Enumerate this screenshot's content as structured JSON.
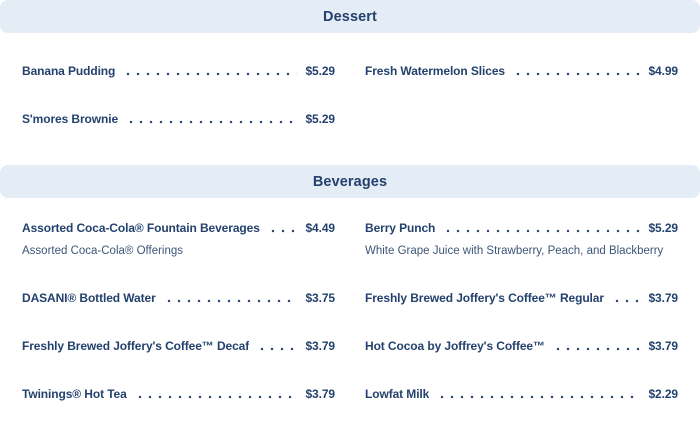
{
  "page": {
    "background_color": "#ffffff",
    "header_background_color": "#e4ecf6",
    "text_color": "#24426d"
  },
  "sections": [
    {
      "title": "Dessert",
      "items": [
        {
          "name": "Banana Pudding",
          "price": "$5.29"
        },
        {
          "name": "Fresh Watermelon Slices",
          "price": "$4.99"
        },
        {
          "name": "S'mores Brownie",
          "price": "$5.29"
        }
      ]
    },
    {
      "title": "Beverages",
      "items": [
        {
          "name": "Assorted Coca-Cola® Fountain Beverages",
          "price": "$4.49",
          "description": "Assorted Coca-Cola® Offerings"
        },
        {
          "name": "Berry Punch",
          "price": "$5.29",
          "description": "White Grape Juice with Strawberry, Peach, and Blackberry"
        },
        {
          "name": "DASANI® Bottled Water",
          "price": "$3.75"
        },
        {
          "name": "Freshly Brewed Joffery's Coffee™ Regular",
          "price": "$3.79"
        },
        {
          "name": "Freshly Brewed Joffery's Coffee™ Decaf",
          "price": "$3.79"
        },
        {
          "name": "Hot Cocoa by Joffrey's Coffee™",
          "price": "$3.79"
        },
        {
          "name": "Twinings® Hot Tea",
          "price": "$3.79"
        },
        {
          "name": "Lowfat Milk",
          "price": "$2.29"
        }
      ]
    }
  ]
}
